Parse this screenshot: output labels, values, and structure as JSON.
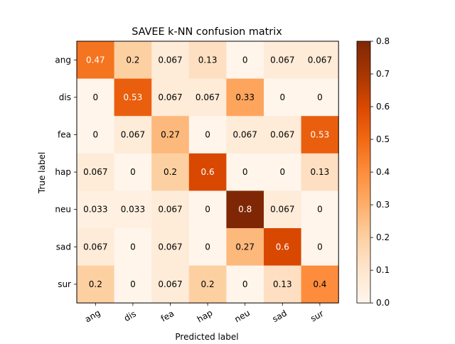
{
  "chart_data": {
    "type": "heatmap",
    "title": "SAVEE k-NN confusion matrix",
    "xlabel": "Predicted label",
    "ylabel": "True label",
    "x_categories": [
      "ang",
      "dis",
      "fea",
      "hap",
      "neu",
      "sad",
      "sur"
    ],
    "y_categories": [
      "ang",
      "dis",
      "fea",
      "hap",
      "neu",
      "sad",
      "sur"
    ],
    "values": [
      [
        0.47,
        0.2,
        0.067,
        0.13,
        0,
        0.067,
        0.067
      ],
      [
        0,
        0.53,
        0.067,
        0.067,
        0.33,
        0,
        0
      ],
      [
        0,
        0.067,
        0.27,
        0,
        0.067,
        0.067,
        0.53
      ],
      [
        0.067,
        0,
        0.2,
        0.6,
        0,
        0,
        0.13
      ],
      [
        0.033,
        0.033,
        0.067,
        0,
        0.8,
        0.067,
        0
      ],
      [
        0.067,
        0,
        0.067,
        0,
        0.27,
        0.6,
        0
      ],
      [
        0.2,
        0,
        0.067,
        0.2,
        0,
        0.13,
        0.4
      ]
    ],
    "colorbar": {
      "range": [
        0.0,
        0.8
      ],
      "ticks": [
        "0.0",
        "0.1",
        "0.2",
        "0.3",
        "0.4",
        "0.5",
        "0.6",
        "0.7",
        "0.8"
      ]
    },
    "colormap": "Oranges",
    "colormap_stops": [
      "#fff5eb",
      "#fee6ce",
      "#fdd0a2",
      "#fdae6b",
      "#fd8d3c",
      "#f16913",
      "#d94801",
      "#a63603",
      "#7f2704"
    ]
  }
}
